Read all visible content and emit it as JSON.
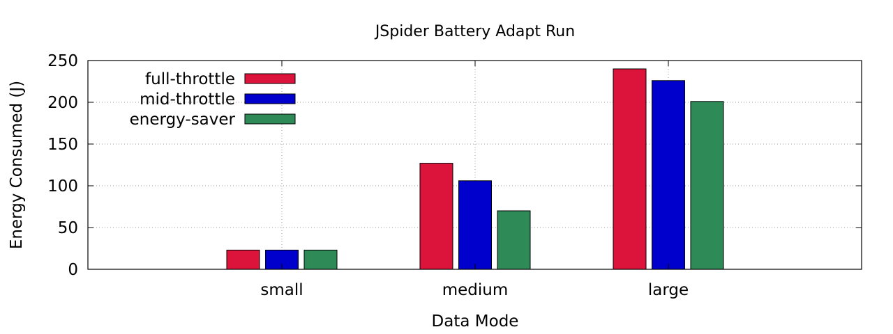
{
  "chart_data": {
    "type": "bar",
    "title": "JSpider Battery Adapt Run",
    "xlabel": "Data Mode",
    "ylabel": "Energy Consumed (J)",
    "categories": [
      "small",
      "medium",
      "large"
    ],
    "ylim": [
      0,
      250
    ],
    "yticks": [
      0,
      50,
      100,
      150,
      200,
      250
    ],
    "grid": true,
    "legend_position": "top-left",
    "series": [
      {
        "name": "full-throttle",
        "color": "#dc143c",
        "values": [
          23,
          127,
          240
        ]
      },
      {
        "name": "mid-throttle",
        "color": "#0000cd",
        "values": [
          23,
          106,
          226
        ]
      },
      {
        "name": "energy-saver",
        "color": "#2e8b57",
        "values": [
          23,
          70,
          201
        ]
      }
    ]
  }
}
